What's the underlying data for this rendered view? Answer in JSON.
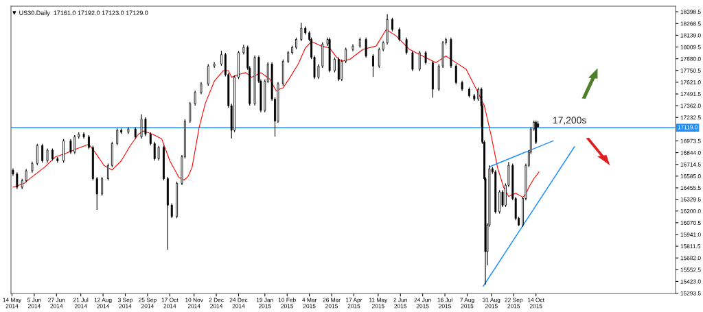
{
  "chart_data": {
    "type": "candlestick",
    "title": "US30.Daily  17161.0 17192.0 17123.0 17129.0",
    "color": "#000000",
    "x": [
      "2014-05-15",
      "2014-05-19",
      "2014-05-24",
      "2014-05-28",
      "2014-06-03",
      "2014-06-08",
      "2014-06-13",
      "2014-06-18",
      "2014-06-23",
      "2014-06-28",
      "2014-07-04",
      "2014-07-11",
      "2014-07-15",
      "2014-07-19",
      "2014-07-24",
      "2014-07-29",
      "2014-08-02",
      "2014-08-06",
      "2014-08-11",
      "2014-08-17",
      "2014-08-21",
      "2014-08-26",
      "2014-08-30",
      "2014-09-06",
      "2014-09-13",
      "2014-09-19",
      "2014-09-23",
      "2014-09-28",
      "2014-10-02",
      "2014-10-06",
      "2014-10-11",
      "2014-10-15",
      "2014-10-19",
      "2014-10-24",
      "2014-10-29",
      "2014-11-01",
      "2014-11-06",
      "2014-11-11",
      "2014-11-17",
      "2014-11-24",
      "2014-11-30",
      "2014-12-07",
      "2014-12-11",
      "2014-12-14",
      "2014-12-17",
      "2014-12-20",
      "2014-12-24",
      "2014-12-29",
      "2015-01-02",
      "2015-01-04",
      "2015-01-09",
      "2015-01-13",
      "2015-01-15",
      "2015-01-19",
      "2015-01-22",
      "2015-01-26",
      "2015-01-29",
      "2015-02-01",
      "2015-02-06",
      "2015-02-11",
      "2015-02-15",
      "2015-02-19",
      "2015-02-24",
      "2015-02-28",
      "2015-03-04",
      "2015-03-06",
      "2015-03-09",
      "2015-03-13",
      "2015-03-17",
      "2015-03-22",
      "2015-03-24",
      "2015-03-29",
      "2015-04-02",
      "2015-04-05",
      "2015-04-09",
      "2015-04-16",
      "2015-04-23",
      "2015-04-29",
      "2015-05-06",
      "2015-05-12",
      "2015-05-16",
      "2015-05-20",
      "2015-05-25",
      "2015-06-01",
      "2015-06-08",
      "2015-06-14",
      "2015-06-21",
      "2015-06-27",
      "2015-07-04",
      "2015-07-10",
      "2015-07-14",
      "2015-07-17",
      "2015-07-22",
      "2015-07-27",
      "2015-08-02",
      "2015-08-09",
      "2015-08-14",
      "2015-08-18",
      "2015-08-21",
      "2015-08-22",
      "2015-08-24",
      "2015-08-25",
      "2015-08-27",
      "2015-08-29",
      "2015-09-01",
      "2015-09-04",
      "2015-09-08",
      "2015-09-11",
      "2015-09-14",
      "2015-09-17",
      "2015-09-21",
      "2015-09-24",
      "2015-09-27",
      "2015-10-01",
      "2015-10-04",
      "2015-10-07",
      "2015-10-09",
      "2015-10-12",
      "2015-10-14",
      "2015-10-16"
    ],
    "ohlc": [
      [
        16650,
        16670,
        16588,
        16608
      ],
      [
        16608,
        16628,
        16442,
        16462
      ],
      [
        16462,
        16555,
        16442,
        16535
      ],
      [
        16535,
        16664,
        16515,
        16644
      ],
      [
        16644,
        16745,
        16624,
        16725
      ],
      [
        16725,
        16942,
        16705,
        16922
      ],
      [
        16922,
        16942,
        16734,
        16754
      ],
      [
        16754,
        16891,
        16734,
        16871
      ],
      [
        16871,
        16891,
        16756,
        16776
      ],
      [
        16776,
        16796,
        16734,
        16754
      ],
      [
        16754,
        16994,
        16734,
        16974
      ],
      [
        16974,
        16994,
        16829,
        16849
      ],
      [
        16849,
        17038,
        16829,
        17018
      ],
      [
        17018,
        17067,
        16998,
        17047
      ],
      [
        17047,
        17067,
        16998,
        17018
      ],
      [
        17018,
        17038,
        16881,
        16901
      ],
      [
        16901,
        16921,
        16537,
        16557
      ],
      [
        16557,
        16577,
        16213,
        16388
      ],
      [
        16388,
        16577,
        16368,
        16557
      ],
      [
        16557,
        16723,
        16537,
        16703
      ],
      [
        16703,
        16964,
        16683,
        16944
      ],
      [
        16944,
        17111,
        16924,
        17091
      ],
      [
        17091,
        17111,
        17050,
        17070
      ],
      [
        17070,
        17125,
        17050,
        17105
      ],
      [
        17105,
        17125,
        16998,
        17018
      ],
      [
        17018,
        17266,
        16998,
        17215
      ],
      [
        17215,
        17235,
        17027,
        17047
      ],
      [
        17047,
        17067,
        16924,
        16944
      ],
      [
        16944,
        16964,
        16756,
        16776
      ],
      [
        16776,
        16921,
        16756,
        16901
      ],
      [
        16901,
        16921,
        16537,
        16557
      ],
      [
        16557,
        16577,
        15774,
        16264
      ],
      [
        16264,
        16284,
        16120,
        16140
      ],
      [
        16140,
        16525,
        16120,
        16505
      ],
      [
        16505,
        16818,
        16485,
        16798
      ],
      [
        16798,
        17213,
        16778,
        17193
      ],
      [
        17193,
        17403,
        17173,
        17383
      ],
      [
        17383,
        17528,
        17363,
        17508
      ],
      [
        17508,
        17623,
        17488,
        17603
      ],
      [
        17603,
        17820,
        17583,
        17800
      ],
      [
        17800,
        17842,
        17780,
        17822
      ],
      [
        17822,
        17969,
        17802,
        17925
      ],
      [
        17925,
        17945,
        17685,
        17705
      ],
      [
        17705,
        17725,
        17341,
        17361
      ],
      [
        17361,
        17381,
        17000,
        17091
      ],
      [
        17091,
        17696,
        17071,
        17676
      ],
      [
        17676,
        17967,
        17656,
        17947
      ],
      [
        17947,
        18035,
        17927,
        18005
      ],
      [
        18005,
        18025,
        17758,
        17778
      ],
      [
        17778,
        17798,
        17363,
        17383
      ],
      [
        17383,
        17916,
        17363,
        17896
      ],
      [
        17896,
        17916,
        17612,
        17632
      ],
      [
        17632,
        17652,
        17290,
        17310
      ],
      [
        17310,
        17652,
        17290,
        17632
      ],
      [
        17632,
        17842,
        17612,
        17822
      ],
      [
        17822,
        17842,
        17415,
        17435
      ],
      [
        17435,
        17455,
        17020,
        17193
      ],
      [
        17193,
        17623,
        17173,
        17603
      ],
      [
        17603,
        17872,
        17583,
        17852
      ],
      [
        17852,
        17967,
        17832,
        17947
      ],
      [
        17947,
        18025,
        17927,
        18005
      ],
      [
        18005,
        18113,
        17985,
        18093
      ],
      [
        18093,
        18276,
        18073,
        18217
      ],
      [
        18217,
        18237,
        18146,
        18166
      ],
      [
        18166,
        18186,
        18073,
        18093
      ],
      [
        18093,
        18113,
        17876,
        17896
      ],
      [
        17896,
        17916,
        17656,
        17676
      ],
      [
        17676,
        17820,
        17656,
        17800
      ],
      [
        17800,
        18062,
        17780,
        18042
      ],
      [
        18042,
        18113,
        18022,
        18093
      ],
      [
        18093,
        18113,
        17729,
        17749
      ],
      [
        17749,
        17894,
        17729,
        17874
      ],
      [
        17874,
        17894,
        17634,
        17654
      ],
      [
        17654,
        17872,
        17634,
        17852
      ],
      [
        17852,
        18003,
        17832,
        17983
      ],
      [
        17983,
        18040,
        17963,
        18020
      ],
      [
        18020,
        18113,
        18000,
        18093
      ],
      [
        18093,
        18113,
        17890,
        17910
      ],
      [
        17910,
        17930,
        17680,
        17800
      ],
      [
        17800,
        18003,
        17780,
        17983
      ],
      [
        17983,
        18076,
        17963,
        18056
      ],
      [
        18056,
        18371,
        18036,
        18313
      ],
      [
        18313,
        18333,
        18183,
        18203
      ],
      [
        18203,
        18223,
        18073,
        18093
      ],
      [
        18093,
        18113,
        17927,
        17947
      ],
      [
        17947,
        17967,
        17744,
        17764
      ],
      [
        17764,
        17967,
        17744,
        17947
      ],
      [
        17947,
        17967,
        17817,
        17837
      ],
      [
        17837,
        17857,
        17450,
        17544
      ],
      [
        17544,
        17820,
        17524,
        17800
      ],
      [
        17800,
        18076,
        17780,
        18056
      ],
      [
        18056,
        18113,
        18036,
        18093
      ],
      [
        18093,
        18113,
        17780,
        17800
      ],
      [
        17800,
        17820,
        17598,
        17618
      ],
      [
        17618,
        17638,
        17524,
        17544
      ],
      [
        17544,
        17564,
        17451,
        17471
      ],
      [
        17471,
        17491,
        17415,
        17435
      ],
      [
        17435,
        17564,
        17415,
        17544
      ],
      [
        17544,
        17564,
        17130,
        17361
      ],
      [
        17361,
        17381,
        16939,
        16959
      ],
      [
        16959,
        16979,
        16537,
        16557
      ],
      [
        16557,
        16577,
        15386,
        15752
      ],
      [
        15752,
        16065,
        15600,
        16045
      ],
      [
        16045,
        16703,
        16025,
        16666
      ],
      [
        16666,
        16686,
        16610,
        16630
      ],
      [
        16630,
        16650,
        16171,
        16191
      ],
      [
        16191,
        16430,
        16171,
        16410
      ],
      [
        16410,
        16430,
        16244,
        16264
      ],
      [
        16264,
        16504,
        16244,
        16484
      ],
      [
        16484,
        16740,
        16464,
        16703
      ],
      [
        16703,
        16723,
        16317,
        16337
      ],
      [
        16337,
        16357,
        16098,
        16118
      ],
      [
        16118,
        16138,
        16035,
        16045
      ],
      [
        16045,
        16357,
        16025,
        16337
      ],
      [
        16337,
        16723,
        16317,
        16703
      ],
      [
        16703,
        16869,
        16683,
        16849
      ],
      [
        16849,
        17125,
        16829,
        17105
      ],
      [
        17105,
        17199,
        17085,
        17179
      ],
      [
        17179,
        17199,
        16939,
        16959
      ],
      [
        17161,
        17192,
        17123,
        17129
      ]
    ],
    "series": [
      {
        "type": "line",
        "color": "#ff0000",
        "x": [
          "2014-05-15",
          "2014-05-26",
          "2014-06-03",
          "2014-06-15",
          "2014-06-26",
          "2014-07-06",
          "2014-07-17",
          "2014-07-29",
          "2014-08-04",
          "2014-08-13",
          "2014-08-21",
          "2014-08-30",
          "2014-09-08",
          "2014-09-16",
          "2014-09-21",
          "2014-09-30",
          "2014-10-09",
          "2014-10-17",
          "2014-10-26",
          "2014-10-31",
          "2014-11-04",
          "2014-11-08",
          "2014-11-15",
          "2014-11-21",
          "2014-11-30",
          "2014-12-09",
          "2014-12-14",
          "2014-12-17",
          "2014-12-24",
          "2014-12-31",
          "2015-01-06",
          "2015-01-15",
          "2015-01-24",
          "2015-01-30",
          "2015-02-06",
          "2015-02-13",
          "2015-02-21",
          "2015-02-28",
          "2015-03-06",
          "2015-03-16",
          "2015-03-24",
          "2015-03-31",
          "2015-04-05",
          "2015-04-13",
          "2015-04-26",
          "2015-05-09",
          "2015-05-19",
          "2015-05-29",
          "2015-06-11",
          "2015-06-24",
          "2015-07-07",
          "2015-07-17",
          "2015-07-27",
          "2015-08-06",
          "2015-08-16",
          "2015-08-24",
          "2015-08-31",
          "2015-09-06",
          "2015-09-12",
          "2015-09-17",
          "2015-09-24",
          "2015-10-01",
          "2015-10-04",
          "2015-10-07",
          "2015-10-12",
          "2015-10-17"
        ],
        "values": [
          16462,
          16505,
          16579,
          16681,
          16798,
          16835,
          16886,
          16937,
          16849,
          16703,
          16652,
          16754,
          16922,
          17047,
          17083,
          17047,
          16996,
          16754,
          16571,
          16542,
          16579,
          16681,
          17120,
          17383,
          17632,
          17749,
          17749,
          17676,
          17705,
          17727,
          17676,
          17727,
          17654,
          17530,
          17559,
          17676,
          17822,
          17998,
          18071,
          18020,
          17998,
          17896,
          17852,
          17874,
          17983,
          18020,
          18203,
          18130,
          17983,
          17910,
          17837,
          17910,
          17837,
          17764,
          17544,
          17361,
          17018,
          16681,
          16462,
          16360,
          16396,
          16352,
          16388,
          16462,
          16557,
          16630
        ]
      },
      {
        "type": "line",
        "color": "#1e90ff",
        "x": [
          "2015-08-29",
          "2015-10-31"
        ],
        "values": [
          16688,
          16974
        ]
      },
      {
        "type": "line",
        "color": "#1e90ff",
        "x": [
          "2015-08-23",
          "2015-11-21"
        ],
        "values": [
          15372,
          16908
        ]
      }
    ],
    "ref_lines": [
      {
        "axis": "y",
        "value": 17119,
        "label": "17119.0",
        "color": "#1e90ff"
      }
    ],
    "annotations": [
      "17,200s"
    ],
    "xlim": [
      "2014-05-13",
      "2016-02-29"
    ],
    "xticks": [
      {
        "value": "2014-05-14",
        "label": "14 May 2014"
      },
      {
        "value": "2014-06-05",
        "label": "5 Jun 2014"
      },
      {
        "value": "2014-06-27",
        "label": "27 Jun 2014"
      },
      {
        "value": "2014-07-21",
        "label": "21 Jul 2014"
      },
      {
        "value": "2014-08-12",
        "label": "12 Aug 2014"
      },
      {
        "value": "2014-09-03",
        "label": "3 Sep 2014"
      },
      {
        "value": "2014-09-25",
        "label": "25 Sep 2014"
      },
      {
        "value": "2014-10-17",
        "label": "17 Oct 2014"
      },
      {
        "value": "2014-11-10",
        "label": "10 Nov 2014"
      },
      {
        "value": "2014-12-02",
        "label": "2 Dec 2014"
      },
      {
        "value": "2014-12-24",
        "label": "24 Dec 2014"
      },
      {
        "value": "2015-01-19",
        "label": "19 Jan 2015"
      },
      {
        "value": "2015-02-10",
        "label": "10 Feb 2015"
      },
      {
        "value": "2015-03-04",
        "label": "4 Mar 2015"
      },
      {
        "value": "2015-03-26",
        "label": "26 Mar 2015"
      },
      {
        "value": "2015-04-17",
        "label": "17 Apr 2015"
      },
      {
        "value": "2015-05-11",
        "label": "11 May 2015"
      },
      {
        "value": "2015-06-02",
        "label": "2 Jun 2015"
      },
      {
        "value": "2015-06-24",
        "label": "24 Jun 2015"
      },
      {
        "value": "2015-07-16",
        "label": "16 Jul 2015"
      },
      {
        "value": "2015-08-07",
        "label": "7 Aug 2015"
      },
      {
        "value": "2015-08-31",
        "label": "31 Aug 2015"
      },
      {
        "value": "2015-09-22",
        "label": "22 Sep 2015"
      },
      {
        "value": "2015-10-14",
        "label": "14 Oct 2015"
      }
    ],
    "ylim": [
      15290,
      18460
    ],
    "yticks": [
      {
        "value": 18398.5,
        "label": "18398.5"
      },
      {
        "value": 18268.5,
        "label": "18268.5"
      },
      {
        "value": 18139.0,
        "label": "18139.0"
      },
      {
        "value": 18009.5,
        "label": "18009.5"
      },
      {
        "value": 17880.0,
        "label": "17880.0"
      },
      {
        "value": 17750.5,
        "label": "17750.5"
      },
      {
        "value": 17621.0,
        "label": "17621.0"
      },
      {
        "value": 17491.5,
        "label": "17491.5"
      },
      {
        "value": 17362.0,
        "label": "17362.0"
      },
      {
        "value": 17232.5,
        "label": "17232.5"
      },
      {
        "value": 16973.5,
        "label": "16973.5"
      },
      {
        "value": 16844.0,
        "label": "16844.0"
      },
      {
        "value": 16714.5,
        "label": "16714.5"
      },
      {
        "value": 16585.0,
        "label": "16585.0"
      },
      {
        "value": 16455.5,
        "label": "16455.5"
      },
      {
        "value": 16329.5,
        "label": "16329.5"
      },
      {
        "value": 16200.0,
        "label": "16200.0"
      },
      {
        "value": 16070.5,
        "label": "16070.5"
      },
      {
        "value": 15941.0,
        "label": "15941.0"
      },
      {
        "value": 15811.5,
        "label": "15811.5"
      },
      {
        "value": 15682.0,
        "label": "15682.0"
      },
      {
        "value": 15552.5,
        "label": "15552.5"
      },
      {
        "value": 15423.0,
        "label": "15423.0"
      },
      {
        "value": 15293.5,
        "label": "15293.5"
      }
    ],
    "grid": false,
    "legend": false
  }
}
